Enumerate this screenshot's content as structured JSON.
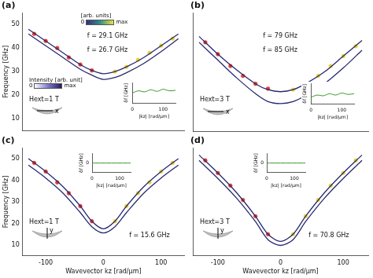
{
  "chart_data": [
    {
      "type": "line",
      "title": "(a)",
      "y_label": "Frequency [GHz]",
      "xlim": [
        -140,
        140
      ],
      "xticks": [
        -100,
        -50,
        0,
        50,
        100
      ],
      "ylim": [
        5,
        55
      ],
      "yticks": [
        10,
        20,
        30,
        40,
        50
      ],
      "tick_labels": "y",
      "grid": false,
      "series": [
        {
          "type": "line",
          "color": "#262a6e",
          "x": [
            -130,
            -100,
            -70,
            -40,
            -20,
            0,
            20,
            40,
            70,
            100,
            130
          ],
          "values": [
            48,
            43,
            38,
            33,
            30.5,
            29.1,
            30,
            32,
            36,
            41,
            46
          ]
        },
        {
          "type": "line",
          "color": "#262a6e",
          "x": [
            -130,
            -100,
            -70,
            -40,
            -20,
            0,
            20,
            40,
            70,
            100,
            130
          ],
          "values": [
            46,
            41,
            36,
            31,
            28.5,
            26.7,
            27.5,
            29.5,
            33.5,
            38.5,
            44
          ]
        },
        {
          "type": "scatter",
          "marker": "circle",
          "color": "#e23b2e",
          "x": [
            -120,
            -100,
            -80,
            -60,
            -40,
            -20
          ],
          "values": [
            46,
            43,
            40,
            36,
            33,
            30.5
          ]
        },
        {
          "type": "scatter",
          "marker": "circle",
          "color": "#e8d33a",
          "x": [
            20,
            40,
            60,
            80,
            100,
            120
          ],
          "values": [
            30,
            32,
            35,
            38,
            41,
            44
          ]
        }
      ],
      "annotations": [
        "f = 29.1 GHz",
        "f = 26.7 GHz"
      ],
      "field": {
        "label": "Hext=1 T",
        "axis": "x"
      },
      "colorbars": [
        {
          "label": "[arb. units]",
          "range_labels": [
            "0",
            "max"
          ]
        },
        {
          "label": "Intensity [arb. unit]",
          "range_labels": [
            "0",
            "max"
          ]
        }
      ],
      "inset": {
        "type": "line",
        "x_label": "|kz| [rad/µm]",
        "y_label": "δf [GHz]",
        "xlim": [
          0,
          140
        ],
        "xticks": [
          0,
          100
        ],
        "ylim": [
          0,
          4
        ],
        "tick_labels": "x",
        "series": [
          {
            "type": "line",
            "color": "#3a9a2a",
            "x": [
              0,
              20,
              40,
              60,
              80,
              100,
              120,
              140
            ],
            "values": [
              2.0,
              2.4,
              2.2,
              2.6,
              2.3,
              2.7,
              2.4,
              2.5
            ]
          }
        ]
      }
    },
    {
      "type": "line",
      "title": "(b)",
      "xlim": [
        -140,
        140
      ],
      "xticks": [
        -100,
        -50,
        0,
        50,
        100
      ],
      "ylim": [
        65,
        125
      ],
      "yticks": [
        70,
        80,
        90,
        100,
        110,
        120
      ],
      "tick_labels": false,
      "grid": false,
      "series": [
        {
          "type": "line",
          "color": "#262a6e",
          "x": [
            -130,
            -100,
            -70,
            -40,
            -20,
            0,
            20,
            40,
            70,
            100,
            130
          ],
          "values": [
            113,
            104,
            96,
            89,
            86,
            85,
            86,
            89,
            95,
            103,
            111
          ]
        },
        {
          "type": "line",
          "color": "#262a6e",
          "x": [
            -130,
            -100,
            -70,
            -40,
            -20,
            0,
            20,
            40,
            70,
            100,
            130
          ],
          "values": [
            110,
            101,
            92,
            84,
            80,
            79,
            80,
            83,
            89,
            97,
            106
          ]
        },
        {
          "type": "scatter",
          "marker": "circle",
          "color": "#e23b2e",
          "x": [
            -120,
            -100,
            -80,
            -60,
            -40,
            -20
          ],
          "values": [
            110,
            104,
            98,
            93,
            89,
            86.5
          ]
        },
        {
          "type": "scatter",
          "marker": "circle",
          "color": "#e8d33a",
          "x": [
            20,
            40,
            60,
            80,
            100,
            120
          ],
          "values": [
            86,
            89,
            93,
            98,
            103,
            108
          ]
        }
      ],
      "annotations": [
        "f = 79 GHz",
        "f = 85 GHz"
      ],
      "field": {
        "label": "Hext=3 T",
        "axis": "x"
      },
      "inset": {
        "type": "line",
        "x_label": "|kz| [rad/µm]",
        "y_label": "δf [GHz]",
        "xlim": [
          0,
          140
        ],
        "xticks": [
          0,
          100
        ],
        "ylim": [
          0,
          3
        ],
        "tick_labels": "x",
        "series": [
          {
            "type": "line",
            "color": "#3a9a2a",
            "x": [
              0,
              20,
              40,
              60,
              80,
              100,
              120,
              140
            ],
            "values": [
              1.0,
              1.3,
              1.2,
              1.5,
              1.3,
              1.6,
              1.4,
              1.5
            ]
          }
        ]
      }
    },
    {
      "type": "line",
      "title": "(c)",
      "x_label": "Wavevector kz [rad/µm]",
      "y_label": "Frequency [GHz]",
      "xlim": [
        -140,
        140
      ],
      "xticks": [
        -100,
        0,
        100
      ],
      "ylim": [
        5,
        55
      ],
      "yticks": [
        10,
        20,
        30,
        40,
        50
      ],
      "tick_labels": true,
      "grid": false,
      "series": [
        {
          "type": "line",
          "color": "#262a6e",
          "x": [
            -130,
            -100,
            -70,
            -40,
            -20,
            0,
            20,
            40,
            70,
            100,
            130
          ],
          "values": [
            50,
            44,
            37,
            28,
            21,
            17.5,
            21,
            28,
            37,
            44,
            50
          ]
        },
        {
          "type": "line",
          "color": "#262a6e",
          "x": [
            -130,
            -100,
            -70,
            -40,
            -20,
            0,
            20,
            40,
            70,
            100,
            130
          ],
          "values": [
            47,
            41,
            34,
            25,
            18.5,
            15.6,
            18.5,
            25,
            34,
            41,
            47
          ]
        },
        {
          "type": "scatter",
          "marker": "circle",
          "color": "#e23b2e",
          "x": [
            -120,
            -100,
            -80,
            -60,
            -40,
            -20
          ],
          "values": [
            48,
            44,
            39,
            34,
            28,
            21
          ]
        },
        {
          "type": "scatter",
          "marker": "circle",
          "color": "#e8d33a",
          "x": [
            20,
            40,
            60,
            80,
            100,
            120
          ],
          "values": [
            21,
            28,
            34,
            39,
            44,
            48
          ]
        }
      ],
      "annotations": [
        "f = 15.6 GHz"
      ],
      "field": {
        "label": "Hext=1 T",
        "axis": "y"
      },
      "inset": {
        "type": "line",
        "x_label": "|kz| [rad/µm]",
        "y_label": "δf [GHz]",
        "xlim": [
          0,
          140
        ],
        "xticks": [
          0,
          100
        ],
        "ylim": [
          -1,
          1
        ],
        "yticks": [
          0
        ],
        "tick_labels": true,
        "series": [
          {
            "type": "line",
            "color": "#3a9a2a",
            "x": [
              0,
              20,
              40,
              60,
              80,
              100,
              120,
              140
            ],
            "values": [
              0,
              0,
              0,
              0,
              0,
              0,
              0,
              0
            ]
          }
        ]
      }
    },
    {
      "type": "line",
      "title": "(d)",
      "x_label": "Wavevector kz [rad/µm]",
      "xlim": [
        -140,
        140
      ],
      "xticks": [
        -100,
        0,
        100
      ],
      "ylim": [
        65,
        125
      ],
      "yticks": [
        70,
        80,
        90,
        100,
        110,
        120
      ],
      "tick_labels": "x",
      "grid": false,
      "series": [
        {
          "type": "line",
          "color": "#262a6e",
          "x": [
            -130,
            -100,
            -70,
            -40,
            -20,
            0,
            20,
            40,
            70,
            100,
            130
          ],
          "values": [
            121,
            111,
            100,
            87,
            77,
            73,
            77,
            87,
            100,
            111,
            121
          ]
        },
        {
          "type": "line",
          "color": "#262a6e",
          "x": [
            -130,
            -100,
            -70,
            -40,
            -20,
            0,
            20,
            40,
            70,
            100,
            130
          ],
          "values": [
            118,
            108,
            97,
            84,
            74,
            70.8,
            74,
            84,
            97,
            108,
            118
          ]
        },
        {
          "type": "scatter",
          "marker": "circle",
          "color": "#e23b2e",
          "x": [
            -120,
            -100,
            -80,
            -60,
            -40,
            -20
          ],
          "values": [
            118,
            111,
            104,
            96,
            87,
            77
          ]
        },
        {
          "type": "scatter",
          "marker": "circle",
          "color": "#e8d33a",
          "x": [
            20,
            40,
            60,
            80,
            100,
            120
          ],
          "values": [
            77,
            87,
            96,
            104,
            111,
            118
          ]
        }
      ],
      "annotations": [
        "f = 70.8 GHz"
      ],
      "field": {
        "label": "Hext=3 T",
        "axis": "y"
      },
      "inset": {
        "type": "line",
        "x_label": "|kz| [rad/µm]",
        "y_label": "δf [GHz]",
        "xlim": [
          0,
          140
        ],
        "xticks": [
          0,
          100
        ],
        "ylim": [
          -1,
          1
        ],
        "yticks": [
          0
        ],
        "tick_labels": true,
        "series": [
          {
            "type": "line",
            "color": "#3a9a2a",
            "x": [
              0,
              20,
              40,
              60,
              80,
              100,
              120,
              140
            ],
            "values": [
              0,
              0,
              0,
              0,
              0,
              0,
              0,
              0
            ]
          }
        ]
      }
    }
  ]
}
